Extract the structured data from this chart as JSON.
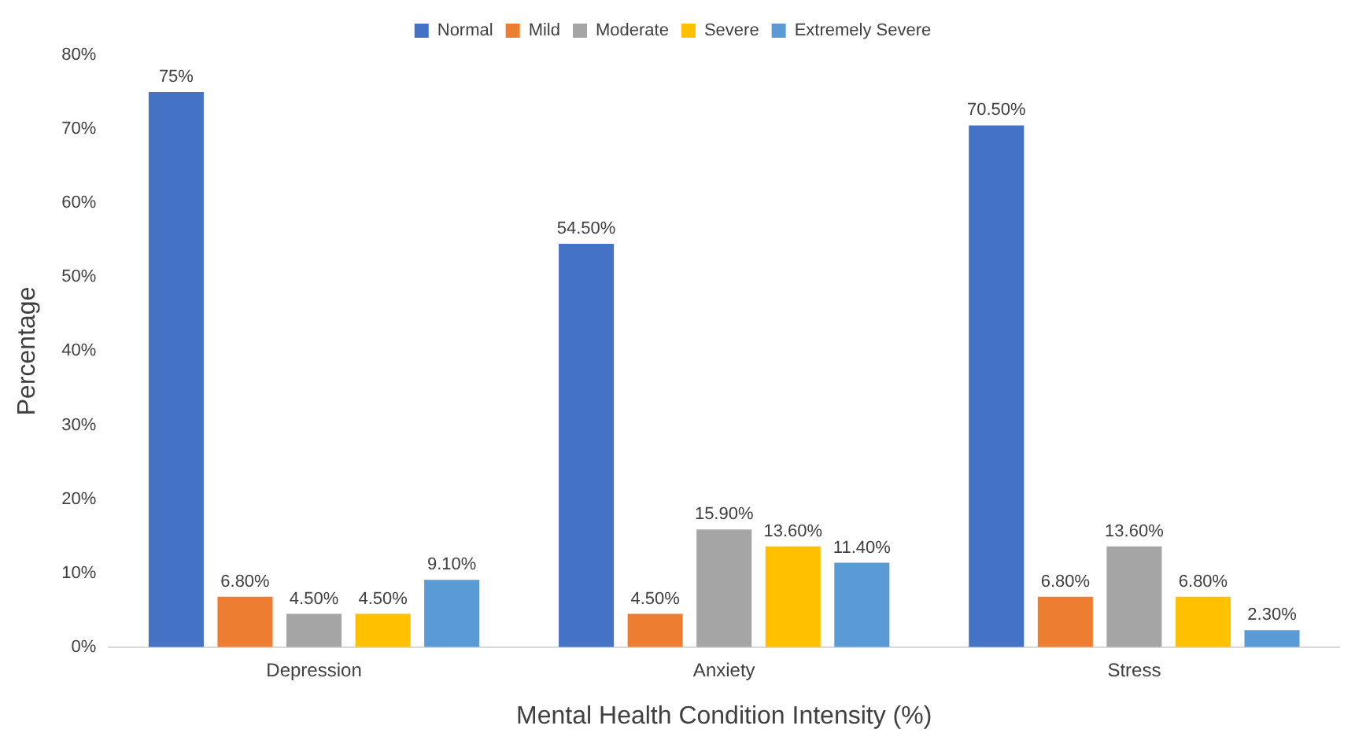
{
  "chart_data": {
    "type": "bar",
    "xlabel": "Mental Health Condition Intensity (%)",
    "ylabel": "Percentage",
    "categories": [
      "Depression",
      "Anxiety",
      "Stress"
    ],
    "series": [
      {
        "name": "Normal",
        "color": "#4472c4",
        "values": [
          75,
          54.5,
          70.5
        ],
        "value_labels": [
          "75%",
          "54.50%",
          "70.50%"
        ]
      },
      {
        "name": "Mild",
        "color": "#ed7d31",
        "values": [
          6.8,
          4.5,
          6.8
        ],
        "value_labels": [
          "6.80%",
          "4.50%",
          "6.80%"
        ]
      },
      {
        "name": "Moderate",
        "color": "#a5a5a5",
        "values": [
          4.5,
          15.9,
          13.6
        ],
        "value_labels": [
          "4.50%",
          "15.90%",
          "13.60%"
        ]
      },
      {
        "name": "Severe",
        "color": "#ffc000",
        "values": [
          4.5,
          13.6,
          6.8
        ],
        "value_labels": [
          "4.50%",
          "13.60%",
          "6.80%"
        ]
      },
      {
        "name": "Extremely Severe",
        "color": "#5b9bd5",
        "values": [
          9.1,
          11.4,
          2.3
        ],
        "value_labels": [
          "9.10%",
          "11.40%",
          "2.30%"
        ]
      }
    ],
    "ylim": [
      0,
      80
    ],
    "yticks": [
      {
        "value": 0,
        "label": "0%"
      },
      {
        "value": 10,
        "label": "10%"
      },
      {
        "value": 20,
        "label": "20%"
      },
      {
        "value": 30,
        "label": "30%"
      },
      {
        "value": 40,
        "label": "40%"
      },
      {
        "value": 50,
        "label": "50%"
      },
      {
        "value": 60,
        "label": "60%"
      },
      {
        "value": 70,
        "label": "70%"
      },
      {
        "value": 80,
        "label": "80%"
      }
    ],
    "grid": false,
    "legend": "top"
  }
}
